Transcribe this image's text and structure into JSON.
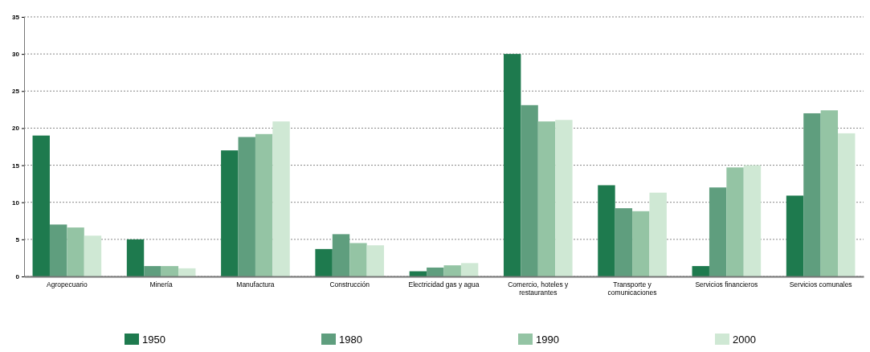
{
  "chart_data": {
    "type": "bar",
    "categories": [
      "Agropecuario",
      "Minería",
      "Manufactura",
      "Construcción",
      "Electricidad gas y agua",
      "Comercio, hoteles y restaurantes",
      "Transporte y comunicaciones",
      "Servicios financieros",
      "Servicios comunales"
    ],
    "series": [
      {
        "name": "1950",
        "color": "#1e7a4e",
        "values": [
          19,
          5,
          17,
          3.7,
          0.7,
          30,
          12.3,
          1.4,
          10.9
        ]
      },
      {
        "name": "1980",
        "color": "#5f9e7e",
        "values": [
          7,
          1.4,
          18.8,
          5.7,
          1.2,
          23.1,
          9.2,
          12,
          22
        ]
      },
      {
        "name": "1990",
        "color": "#94c4a4",
        "values": [
          6.6,
          1.4,
          19.2,
          4.5,
          1.5,
          20.9,
          8.8,
          14.7,
          22.4
        ]
      },
      {
        "name": "2000",
        "color": "#cfe8d4",
        "values": [
          5.5,
          1.1,
          20.9,
          4.2,
          1.8,
          21.1,
          11.3,
          15,
          19.3
        ]
      }
    ],
    "ylim": [
      0,
      35
    ],
    "yticks": [
      0,
      5,
      10,
      15,
      20,
      25,
      30,
      35
    ],
    "grid": "y",
    "legend": "bottom"
  }
}
